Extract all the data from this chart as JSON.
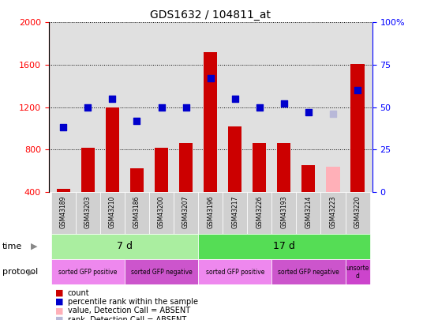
{
  "title": "GDS1632 / 104811_at",
  "samples": [
    "GSM43189",
    "GSM43203",
    "GSM43210",
    "GSM43186",
    "GSM43200",
    "GSM43207",
    "GSM43196",
    "GSM43217",
    "GSM43226",
    "GSM43193",
    "GSM43214",
    "GSM43223",
    "GSM43220"
  ],
  "counts": [
    430,
    820,
    1200,
    620,
    820,
    860,
    1720,
    1020,
    860,
    860,
    650,
    640,
    1610
  ],
  "ranks": [
    38,
    50,
    55,
    42,
    50,
    50,
    67,
    55,
    50,
    52,
    47,
    null,
    60
  ],
  "absent_count": [
    null,
    null,
    null,
    null,
    null,
    null,
    null,
    null,
    null,
    null,
    null,
    640,
    null
  ],
  "absent_rank": [
    null,
    null,
    null,
    null,
    null,
    null,
    null,
    null,
    null,
    null,
    null,
    46,
    null
  ],
  "ylim_left": [
    400,
    2000
  ],
  "ylim_right": [
    0,
    100
  ],
  "yticks_left": [
    400,
    800,
    1200,
    1600,
    2000
  ],
  "yticks_right": [
    0,
    25,
    50,
    75,
    100
  ],
  "bar_color": "#cc0000",
  "scatter_color": "#0000cc",
  "absent_bar_color": "#ffb0b8",
  "absent_rank_color": "#b8b8d8",
  "bg_color": "#e0e0e0",
  "xticklabel_bg": "#d0d0d0",
  "time_color_7d": "#aaeea0",
  "time_color_17d": "#55dd55",
  "protocol_color_pos": "#ee88ee",
  "protocol_color_neg": "#cc55cc",
  "protocol_color_unsorted": "#cc44cc",
  "time_label_7d": "7 d",
  "time_label_17d": "17 d",
  "pg_starts": [
    0,
    3,
    6,
    9,
    12
  ],
  "pg_ends": [
    2,
    5,
    8,
    11,
    12
  ],
  "pg_labels": [
    "sorted GFP positive",
    "sorted GFP negative",
    "sorted GFP positive",
    "sorted GFP negative",
    "unsorte\nd"
  ],
  "pg_colors": [
    "#ee88ee",
    "#cc55cc",
    "#ee88ee",
    "#cc55cc",
    "#cc44cc"
  ],
  "legend_items": [
    {
      "color": "#cc0000",
      "label": "count",
      "marker": "square"
    },
    {
      "color": "#0000cc",
      "label": "percentile rank within the sample",
      "marker": "square"
    },
    {
      "color": "#ffb0b8",
      "label": "value, Detection Call = ABSENT",
      "marker": "square"
    },
    {
      "color": "#b8b8d8",
      "label": "rank, Detection Call = ABSENT",
      "marker": "square"
    }
  ]
}
